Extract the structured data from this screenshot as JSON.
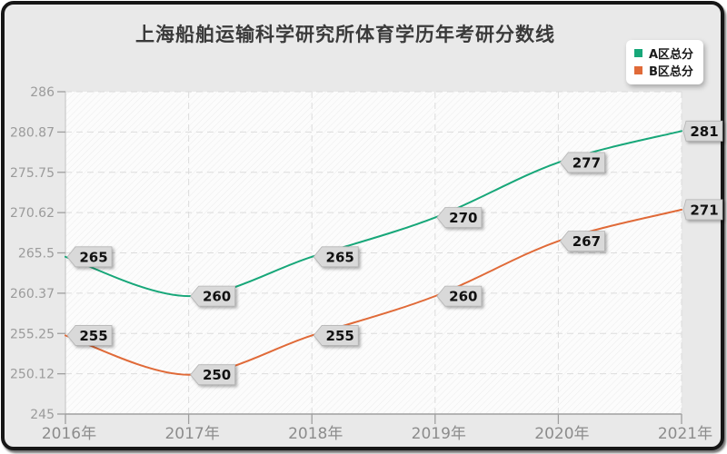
{
  "chart_data": {
    "type": "line",
    "title": "上海船舶运输科学研究所体育学历年考研分数线",
    "x": [
      "2016年",
      "2017年",
      "2018年",
      "2019年",
      "2020年",
      "2021年"
    ],
    "series": [
      {
        "name": "A区总分",
        "color": "#17a779",
        "values": [
          265,
          260,
          265,
          270,
          277,
          281
        ]
      },
      {
        "name": "B区总分",
        "color": "#e06a38",
        "values": [
          255,
          250,
          255,
          260,
          267,
          271
        ]
      }
    ],
    "y_ticks": [
      "286",
      "280.87",
      "275.75",
      "270.62",
      "265.5",
      "260.37",
      "255.25",
      "250.12",
      "245"
    ],
    "ylim": [
      245,
      286
    ],
    "grid": true,
    "smooth": true,
    "point_labels": true,
    "legend_position": "top-right",
    "colors": {
      "background": "#e9e9e9",
      "plot_fill": "#fcfcfc",
      "hatch_line": "#ececec",
      "gridline": "#dcdcdc",
      "axis": "#9f9f9f",
      "point_label_bg": "#d9d9d9",
      "point_label_border": "#b5b5b5",
      "title_text": "#3a3a3a"
    }
  }
}
